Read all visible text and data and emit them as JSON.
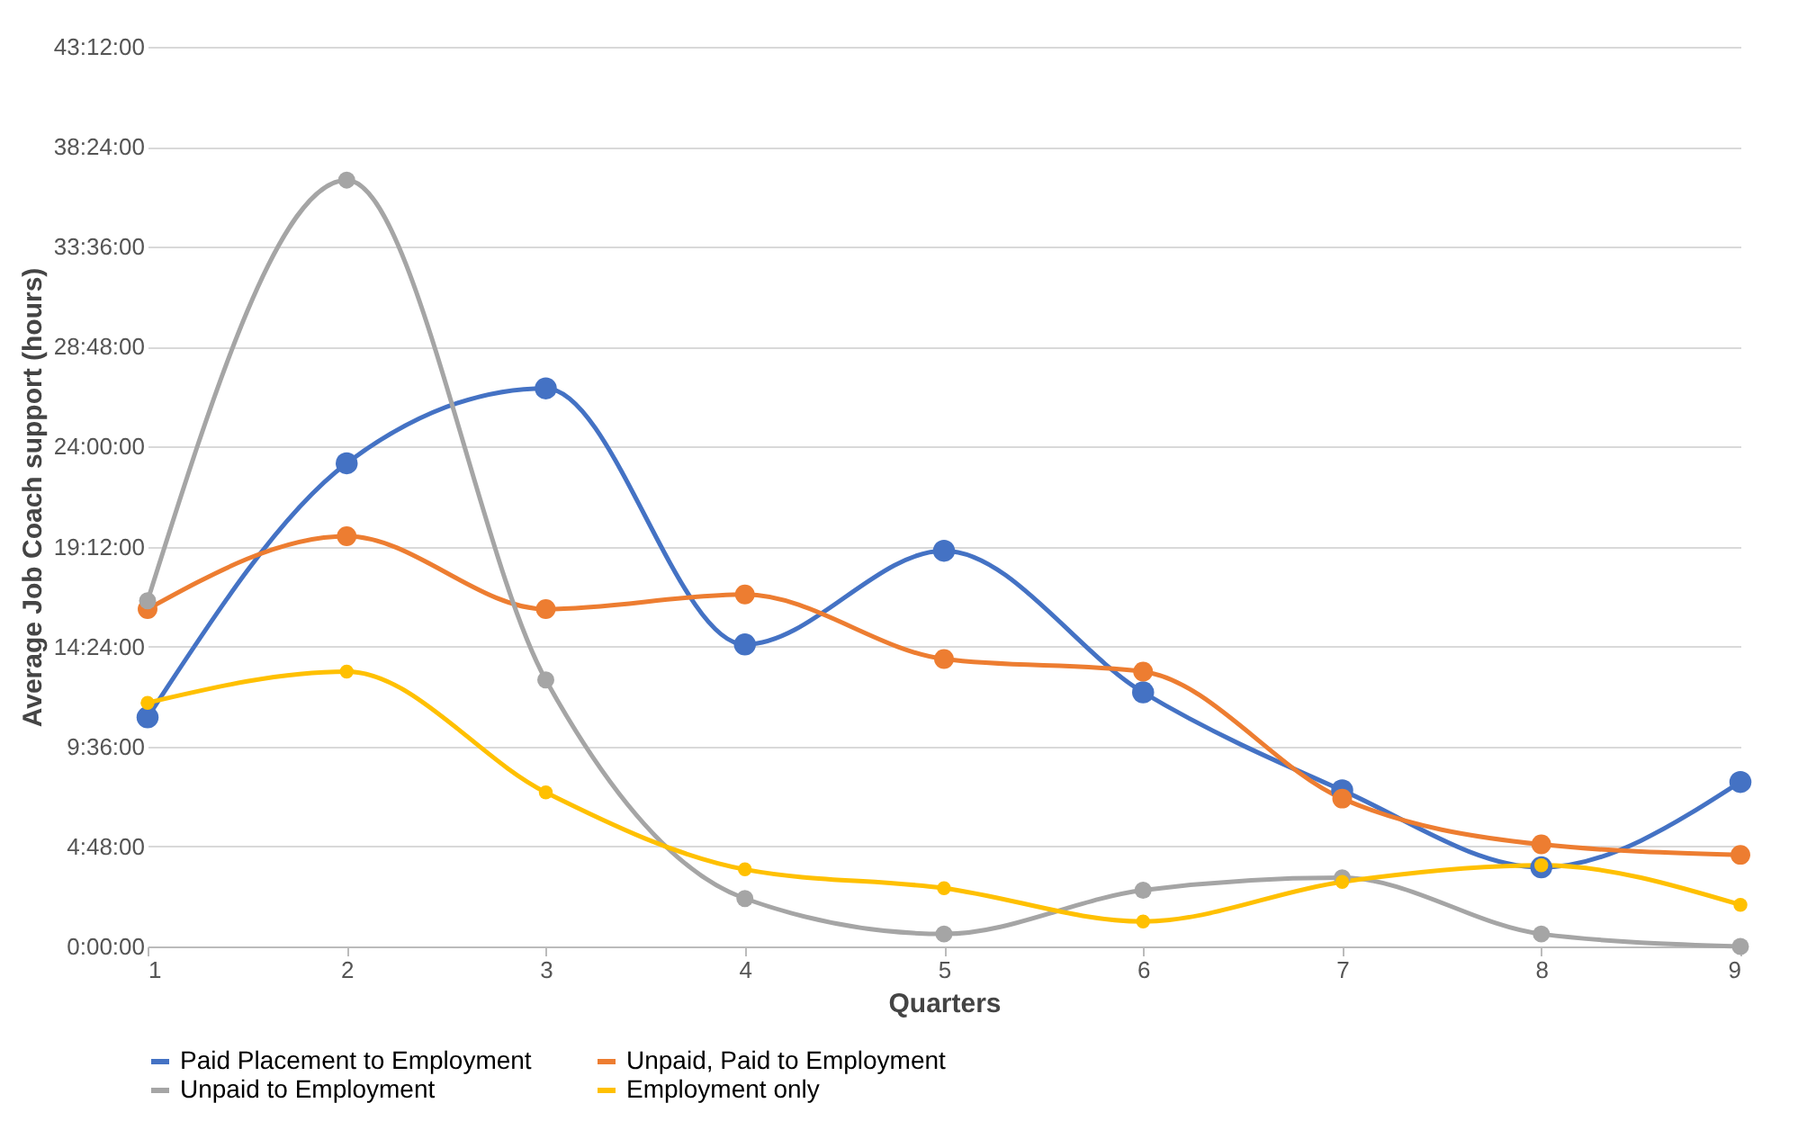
{
  "chart_data": {
    "type": "line",
    "xlabel": "Quarters",
    "ylabel": "Average Job Coach support (hours)",
    "categories": [
      "1",
      "2",
      "3",
      "4",
      "5",
      "6",
      "7",
      "8",
      "9"
    ],
    "ylim": [
      0,
      43.2
    ],
    "yticks": [
      {
        "value": 0,
        "label": "0:00:00"
      },
      {
        "value": 4.8,
        "label": "4:48:00"
      },
      {
        "value": 9.6,
        "label": "9:36:00"
      },
      {
        "value": 14.4,
        "label": "14:24:00"
      },
      {
        "value": 19.2,
        "label": "19:12:00"
      },
      {
        "value": 24,
        "label": "24:00:00"
      },
      {
        "value": 28.8,
        "label": "28:48:00"
      },
      {
        "value": 33.6,
        "label": "33:36:00"
      },
      {
        "value": 38.4,
        "label": "38:24:00"
      },
      {
        "value": 43.2,
        "label": "43:12:00"
      }
    ],
    "series": [
      {
        "name": "Paid Placement to Employment",
        "color": "#4472c4",
        "values": [
          11.0,
          23.2,
          26.8,
          14.5,
          19.0,
          12.2,
          7.5,
          3.8,
          7.9
        ]
      },
      {
        "name": "Unpaid, Paid to Employment",
        "color": "#ed7d31",
        "values": [
          16.2,
          19.7,
          16.2,
          16.9,
          13.8,
          13.2,
          7.1,
          4.9,
          4.4
        ]
      },
      {
        "name": "Unpaid to Employment",
        "color": "#a5a5a5",
        "values": [
          16.6,
          36.8,
          12.8,
          2.3,
          0.6,
          2.7,
          3.3,
          0.6,
          0
        ]
      },
      {
        "name": "Employment only",
        "color": "#ffc000",
        "values": [
          11.7,
          13.2,
          7.4,
          3.7,
          2.8,
          1.2,
          3.1,
          3.9,
          2.0
        ]
      }
    ],
    "grid": "y",
    "legend": "bottom",
    "marker": "circle",
    "line_style": "solid"
  }
}
